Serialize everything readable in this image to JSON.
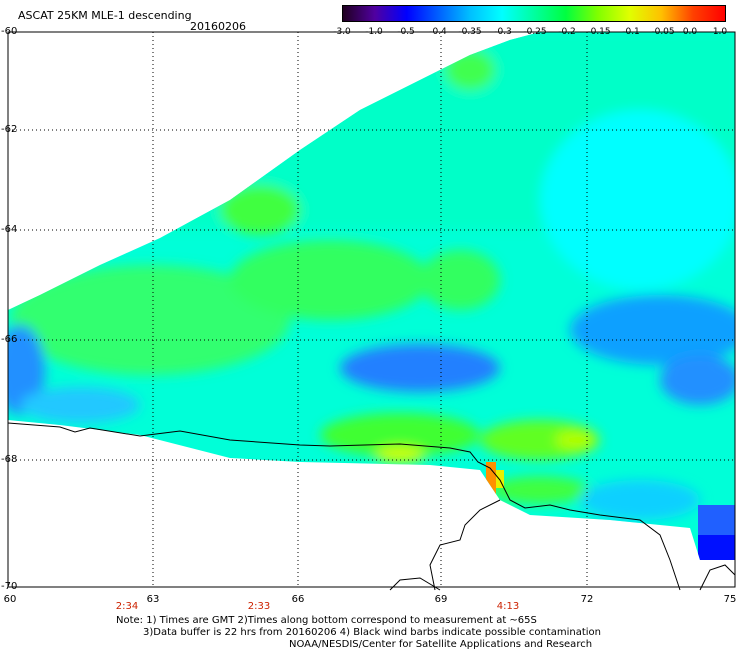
{
  "title": "ASCAT 25KM MLE-1 descending",
  "date": "20160206",
  "colorbar": {
    "labels": [
      "-3.0",
      "-1.0",
      "-0.5",
      "-0.4",
      "-0.35",
      "-0.3",
      "-0.25",
      "-0.2",
      "-0.15",
      "-0.1",
      "-0.05",
      "0.0",
      "1.0"
    ],
    "colors": [
      "#200020",
      "#5000a0",
      "#0000ff",
      "#0060ff",
      "#00c0ff",
      "#00ffff",
      "#00ffa0",
      "#00ff40",
      "#80ff00",
      "#e0ff00",
      "#ffc000",
      "#ff4000",
      "#ff0000"
    ]
  },
  "latitudes": [
    "-60",
    "-62",
    "-64",
    "-66",
    "-68",
    "-70"
  ],
  "longitudes": [
    "60",
    "63",
    "66",
    "69",
    "72",
    "75"
  ],
  "times": [
    "2:34",
    "2:33",
    "4:13"
  ],
  "notes": [
    "Note: 1) Times are GMT 2)Times along bottom correspond to measurement at ~65S",
    "3)Data buffer is 22 hrs from 20160206 4) Black wind barbs indicate possible contamination",
    "NOAA/NESDIS/Center for Satellite Applications and Research"
  ]
}
